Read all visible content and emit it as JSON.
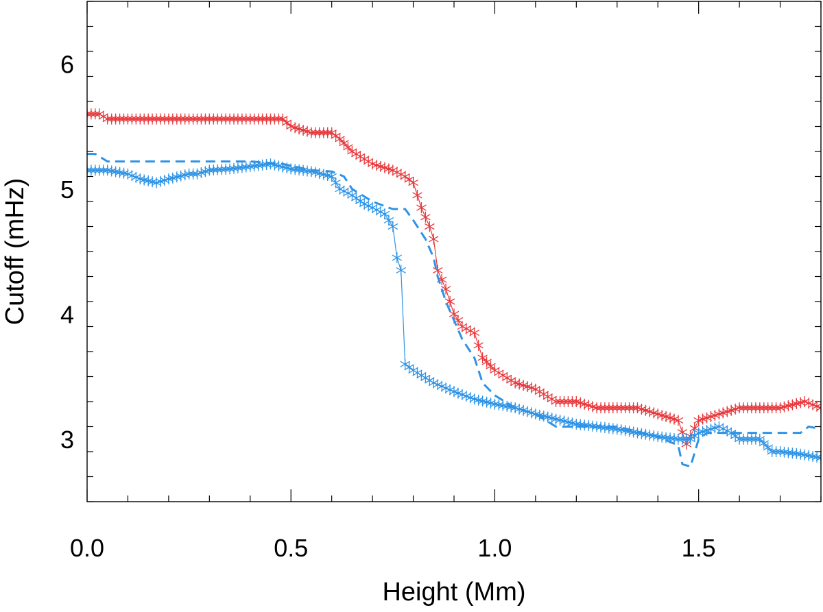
{
  "chart_data": {
    "type": "line",
    "title": "",
    "xlabel": "Height (Mm)",
    "ylabel": "Cutoff (mHz)",
    "xlim": [
      0.0,
      1.8
    ],
    "ylim": [
      2.5,
      6.5
    ],
    "x_major_ticks": [
      0.0,
      0.5,
      1.0,
      1.5
    ],
    "x_tick_labels": [
      "0.0",
      "0.5",
      "1.0",
      "1.5"
    ],
    "x_minor_step": 0.1,
    "y_major_ticks": [
      3,
      4,
      5,
      6
    ],
    "y_tick_labels": [
      "3",
      "4",
      "5",
      "6"
    ],
    "y_minor_step": 0.2,
    "grid": false,
    "series": [
      {
        "color": "#e8383c",
        "style": "solid-asterisk",
        "x": [
          0.0,
          0.03,
          0.05,
          0.1,
          0.2,
          0.3,
          0.4,
          0.48,
          0.5,
          0.55,
          0.6,
          0.62,
          0.65,
          0.7,
          0.75,
          0.78,
          0.8,
          0.82,
          0.84,
          0.85,
          0.86,
          0.88,
          0.9,
          0.92,
          0.95,
          0.97,
          1.0,
          1.05,
          1.1,
          1.15,
          1.2,
          1.25,
          1.3,
          1.35,
          1.4,
          1.45,
          1.47,
          1.5,
          1.55,
          1.6,
          1.65,
          1.7,
          1.76,
          1.8
        ],
        "y": [
          5.6,
          5.6,
          5.56,
          5.56,
          5.56,
          5.56,
          5.56,
          5.56,
          5.5,
          5.45,
          5.45,
          5.4,
          5.3,
          5.2,
          5.15,
          5.1,
          5.05,
          4.85,
          4.7,
          4.6,
          4.35,
          4.2,
          4.0,
          3.9,
          3.85,
          3.65,
          3.55,
          3.45,
          3.4,
          3.3,
          3.3,
          3.25,
          3.25,
          3.25,
          3.2,
          3.15,
          2.96,
          3.15,
          3.2,
          3.25,
          3.25,
          3.25,
          3.3,
          3.25
        ]
      },
      {
        "color": "#2d93e6",
        "style": "dashed",
        "x": [
          0.0,
          0.02,
          0.03,
          0.05,
          0.2,
          0.4,
          0.48,
          0.55,
          0.6,
          0.63,
          0.65,
          0.7,
          0.74,
          0.75,
          0.78,
          0.8,
          0.83,
          0.85,
          0.86,
          0.88,
          0.9,
          0.92,
          0.95,
          0.96,
          0.97,
          1.0,
          1.05,
          1.1,
          1.15,
          1.3,
          1.4,
          1.45,
          1.46,
          1.48,
          1.5,
          1.52,
          1.55,
          1.6,
          1.75,
          1.77,
          1.8
        ],
        "y": [
          5.28,
          5.28,
          5.26,
          5.22,
          5.22,
          5.22,
          5.2,
          5.15,
          5.14,
          5.1,
          5.0,
          4.9,
          4.85,
          4.84,
          4.84,
          4.75,
          4.6,
          4.45,
          4.3,
          4.1,
          3.95,
          3.8,
          3.65,
          3.55,
          3.45,
          3.35,
          3.25,
          3.2,
          3.1,
          3.1,
          3.02,
          2.95,
          2.8,
          2.78,
          3.0,
          3.05,
          3.05,
          3.05,
          3.05,
          3.1,
          3.08
        ]
      },
      {
        "color": "#2d93e6",
        "style": "solid-asterisk",
        "x": [
          0.0,
          0.05,
          0.1,
          0.13,
          0.17,
          0.2,
          0.25,
          0.27,
          0.3,
          0.35,
          0.4,
          0.45,
          0.5,
          0.55,
          0.6,
          0.62,
          0.65,
          0.68,
          0.7,
          0.73,
          0.75,
          0.76,
          0.77,
          0.78,
          0.8,
          0.85,
          0.9,
          0.95,
          1.0,
          1.05,
          1.1,
          1.15,
          1.2,
          1.25,
          1.3,
          1.35,
          1.4,
          1.45,
          1.48,
          1.5,
          1.55,
          1.58,
          1.6,
          1.65,
          1.68,
          1.7,
          1.75,
          1.8
        ],
        "y": [
          5.15,
          5.15,
          5.12,
          5.08,
          5.05,
          5.08,
          5.12,
          5.12,
          5.15,
          5.16,
          5.18,
          5.2,
          5.16,
          5.14,
          5.1,
          5.0,
          4.95,
          4.88,
          4.85,
          4.8,
          4.7,
          4.45,
          4.35,
          3.6,
          3.55,
          3.45,
          3.38,
          3.32,
          3.28,
          3.25,
          3.2,
          3.16,
          3.12,
          3.1,
          3.08,
          3.05,
          3.02,
          3.0,
          3.0,
          3.05,
          3.1,
          3.05,
          3.0,
          3.0,
          2.9,
          2.9,
          2.88,
          2.85
        ]
      }
    ]
  }
}
